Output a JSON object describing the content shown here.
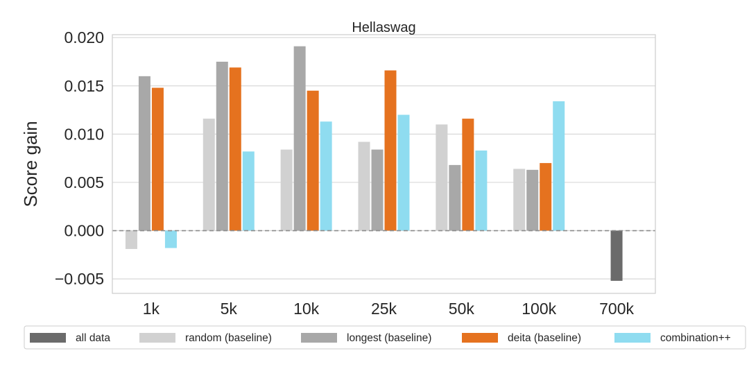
{
  "chart_data": {
    "type": "bar",
    "title": "Hellaswag",
    "xlabel": "",
    "ylabel": "Score gain",
    "categories": [
      "1k",
      "5k",
      "10k",
      "25k",
      "50k",
      "100k",
      "700k"
    ],
    "ylim": [
      -0.0065,
      0.0203
    ],
    "yticks": [
      -0.005,
      0.0,
      0.005,
      0.01,
      0.015,
      0.02
    ],
    "ytick_labels": [
      "−0.005",
      "0.000",
      "0.005",
      "0.010",
      "0.015",
      "0.020"
    ],
    "grid": "horizontal",
    "reference_line": 0.0,
    "legend_position": "bottom",
    "series": [
      {
        "name": "all data",
        "color": "#6b6b6b",
        "values": [
          null,
          null,
          null,
          null,
          null,
          null,
          -0.0052
        ]
      },
      {
        "name": "random (baseline)",
        "color": "#d1d1d1",
        "values": [
          -0.0019,
          0.0116,
          0.0084,
          0.0092,
          0.011,
          0.0064,
          null
        ]
      },
      {
        "name": "longest (baseline)",
        "color": "#a8a8a8",
        "values": [
          0.016,
          0.0175,
          0.0191,
          0.0084,
          0.0068,
          0.0063,
          null
        ]
      },
      {
        "name": "deita (baseline)",
        "color": "#e5721f",
        "values": [
          0.0148,
          0.0169,
          0.0145,
          0.0166,
          0.0116,
          0.007,
          null
        ]
      },
      {
        "name": "combination++",
        "color": "#8fdcf0",
        "values": [
          -0.0018,
          0.0082,
          0.0113,
          0.012,
          0.0083,
          0.0134,
          null
        ]
      }
    ]
  }
}
